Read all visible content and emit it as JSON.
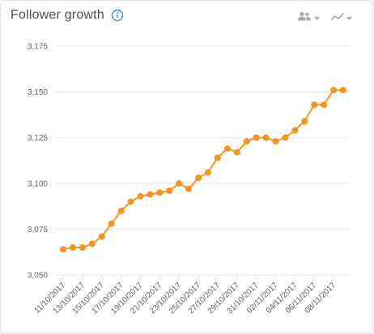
{
  "header": {
    "title": "Follower growth",
    "info_icon": "info-icon",
    "audience_icon": "people-icon",
    "chart_type_icon": "line-chart-icon",
    "dropdown_icon": "chevron-down-icon"
  },
  "colors": {
    "series": "#f7941d",
    "grid": "#e6e6e6",
    "info": "#3d8ed8",
    "control": "#a9adb3"
  },
  "chart_data": {
    "type": "line",
    "title": "Follower growth",
    "xlabel": "",
    "ylabel": "",
    "ylim": [
      3050,
      3175
    ],
    "yticks": [
      3050,
      3075,
      3100,
      3125,
      3150,
      3175
    ],
    "ytick_labels": [
      "3,050",
      "3,075",
      "3,100",
      "3,125",
      "3,150",
      "3,175"
    ],
    "grid": true,
    "x": [
      "11/10/2017",
      "12/10/2017",
      "13/10/2017",
      "14/10/2017",
      "15/10/2017",
      "16/10/2017",
      "17/10/2017",
      "18/10/2017",
      "19/10/2017",
      "20/10/2017",
      "21/10/2017",
      "22/10/2017",
      "23/10/2017",
      "24/10/2017",
      "25/10/2017",
      "26/10/2017",
      "27/10/2017",
      "28/10/2017",
      "29/10/2017",
      "30/10/2017",
      "31/10/2017",
      "01/11/2017",
      "02/11/2017",
      "03/11/2017",
      "04/11/2017",
      "05/11/2017",
      "06/11/2017",
      "07/11/2017",
      "08/11/2017",
      "09/11/2017"
    ],
    "xtick_labels": [
      "11/10/2017",
      "13/10/2017",
      "15/10/2017",
      "17/10/2017",
      "19/10/2017",
      "21/10/2017",
      "23/10/2017",
      "25/10/2017",
      "27/10/2017",
      "29/10/2017",
      "31/10/2017",
      "02/11/2017",
      "04/11/2017",
      "06/11/2017",
      "08/11/2017"
    ],
    "series": [
      {
        "values": [
          3064,
          3065,
          3065,
          3067,
          3071,
          3078,
          3085,
          3090,
          3093,
          3094,
          3095,
          3096,
          3100,
          3097,
          3103,
          3106,
          3114,
          3119,
          3117,
          3123,
          3125,
          3125,
          3123,
          3125,
          3129,
          3134,
          3143,
          3143,
          3151,
          3151
        ]
      }
    ]
  }
}
